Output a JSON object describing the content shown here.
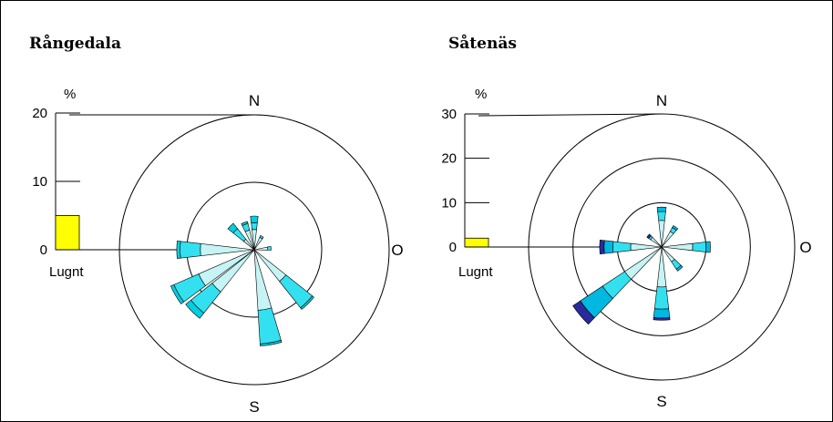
{
  "chart_data": [
    {
      "type": "wind-rose",
      "title": "Rångedala",
      "unit_label": "%",
      "calm_label": "Lugnt",
      "direction_labels": {
        "north": "N",
        "east": "O",
        "south": "S"
      },
      "scale_ticks": [
        0,
        10,
        20
      ],
      "scale_max": 20,
      "ring_values": [
        10,
        20
      ],
      "calm_value": 5,
      "colors": {
        "low": "#c6f4f4",
        "mid": "#33e0f0",
        "high": "#00cfe0",
        "top": "#2a2a9c",
        "calm": "#ffff00"
      },
      "directions": [
        {
          "bearing": 0,
          "bands": [
            3,
            1,
            1,
            0
          ]
        },
        {
          "bearing": 30,
          "bands": [
            2,
            0.3,
            0,
            0
          ]
        },
        {
          "bearing": 60,
          "bands": [
            0,
            0,
            0,
            0
          ]
        },
        {
          "bearing": 85,
          "bands": [
            2,
            0.5,
            0,
            0
          ]
        },
        {
          "bearing": 135,
          "bands": [
            6,
            5,
            0.3,
            0
          ]
        },
        {
          "bearing": 170,
          "bands": [
            9,
            5,
            0.3,
            0
          ]
        },
        {
          "bearing": 180,
          "bands": [
            0,
            0,
            0,
            0
          ]
        },
        {
          "bearing": 225,
          "bands": [
            8,
            4,
            1,
            0
          ]
        },
        {
          "bearing": 240,
          "bands": [
            9,
            4,
            0.5,
            0
          ]
        },
        {
          "bearing": 270,
          "bands": [
            8,
            3,
            0.5,
            0
          ]
        },
        {
          "bearing": 315,
          "bands": [
            2,
            2,
            1,
            0
          ]
        },
        {
          "bearing": 340,
          "bands": [
            3,
            1,
            0.3,
            0
          ]
        }
      ]
    },
    {
      "type": "wind-rose",
      "title": "Såtenäs",
      "unit_label": "%",
      "calm_label": "Lugnt",
      "direction_labels": {
        "north": "N",
        "east": "O",
        "south": "S"
      },
      "scale_ticks": [
        0,
        10,
        20,
        30
      ],
      "scale_max": 30,
      "ring_values": [
        10,
        20,
        30
      ],
      "calm_value": 2,
      "colors": {
        "low": "#c6f4f4",
        "mid": "#33e0f0",
        "high": "#00b8e0",
        "top": "#2a2a9c",
        "calm": "#ffff00"
      },
      "directions": [
        {
          "bearing": 0,
          "bands": [
            6,
            2,
            1,
            0
          ]
        },
        {
          "bearing": 35,
          "bands": [
            4,
            1,
            0.5,
            0
          ]
        },
        {
          "bearing": 90,
          "bands": [
            7,
            3,
            1,
            0
          ]
        },
        {
          "bearing": 140,
          "bands": [
            4,
            2,
            0.5,
            0
          ]
        },
        {
          "bearing": 180,
          "bands": [
            9,
            5,
            2,
            0.5
          ]
        },
        {
          "bearing": 230,
          "bands": [
            10,
            6,
            6,
            2
          ]
        },
        {
          "bearing": 270,
          "bands": [
            7,
            4,
            2,
            1
          ]
        },
        {
          "bearing": 310,
          "bands": [
            3,
            0.5,
            0,
            0.5
          ]
        }
      ]
    }
  ]
}
